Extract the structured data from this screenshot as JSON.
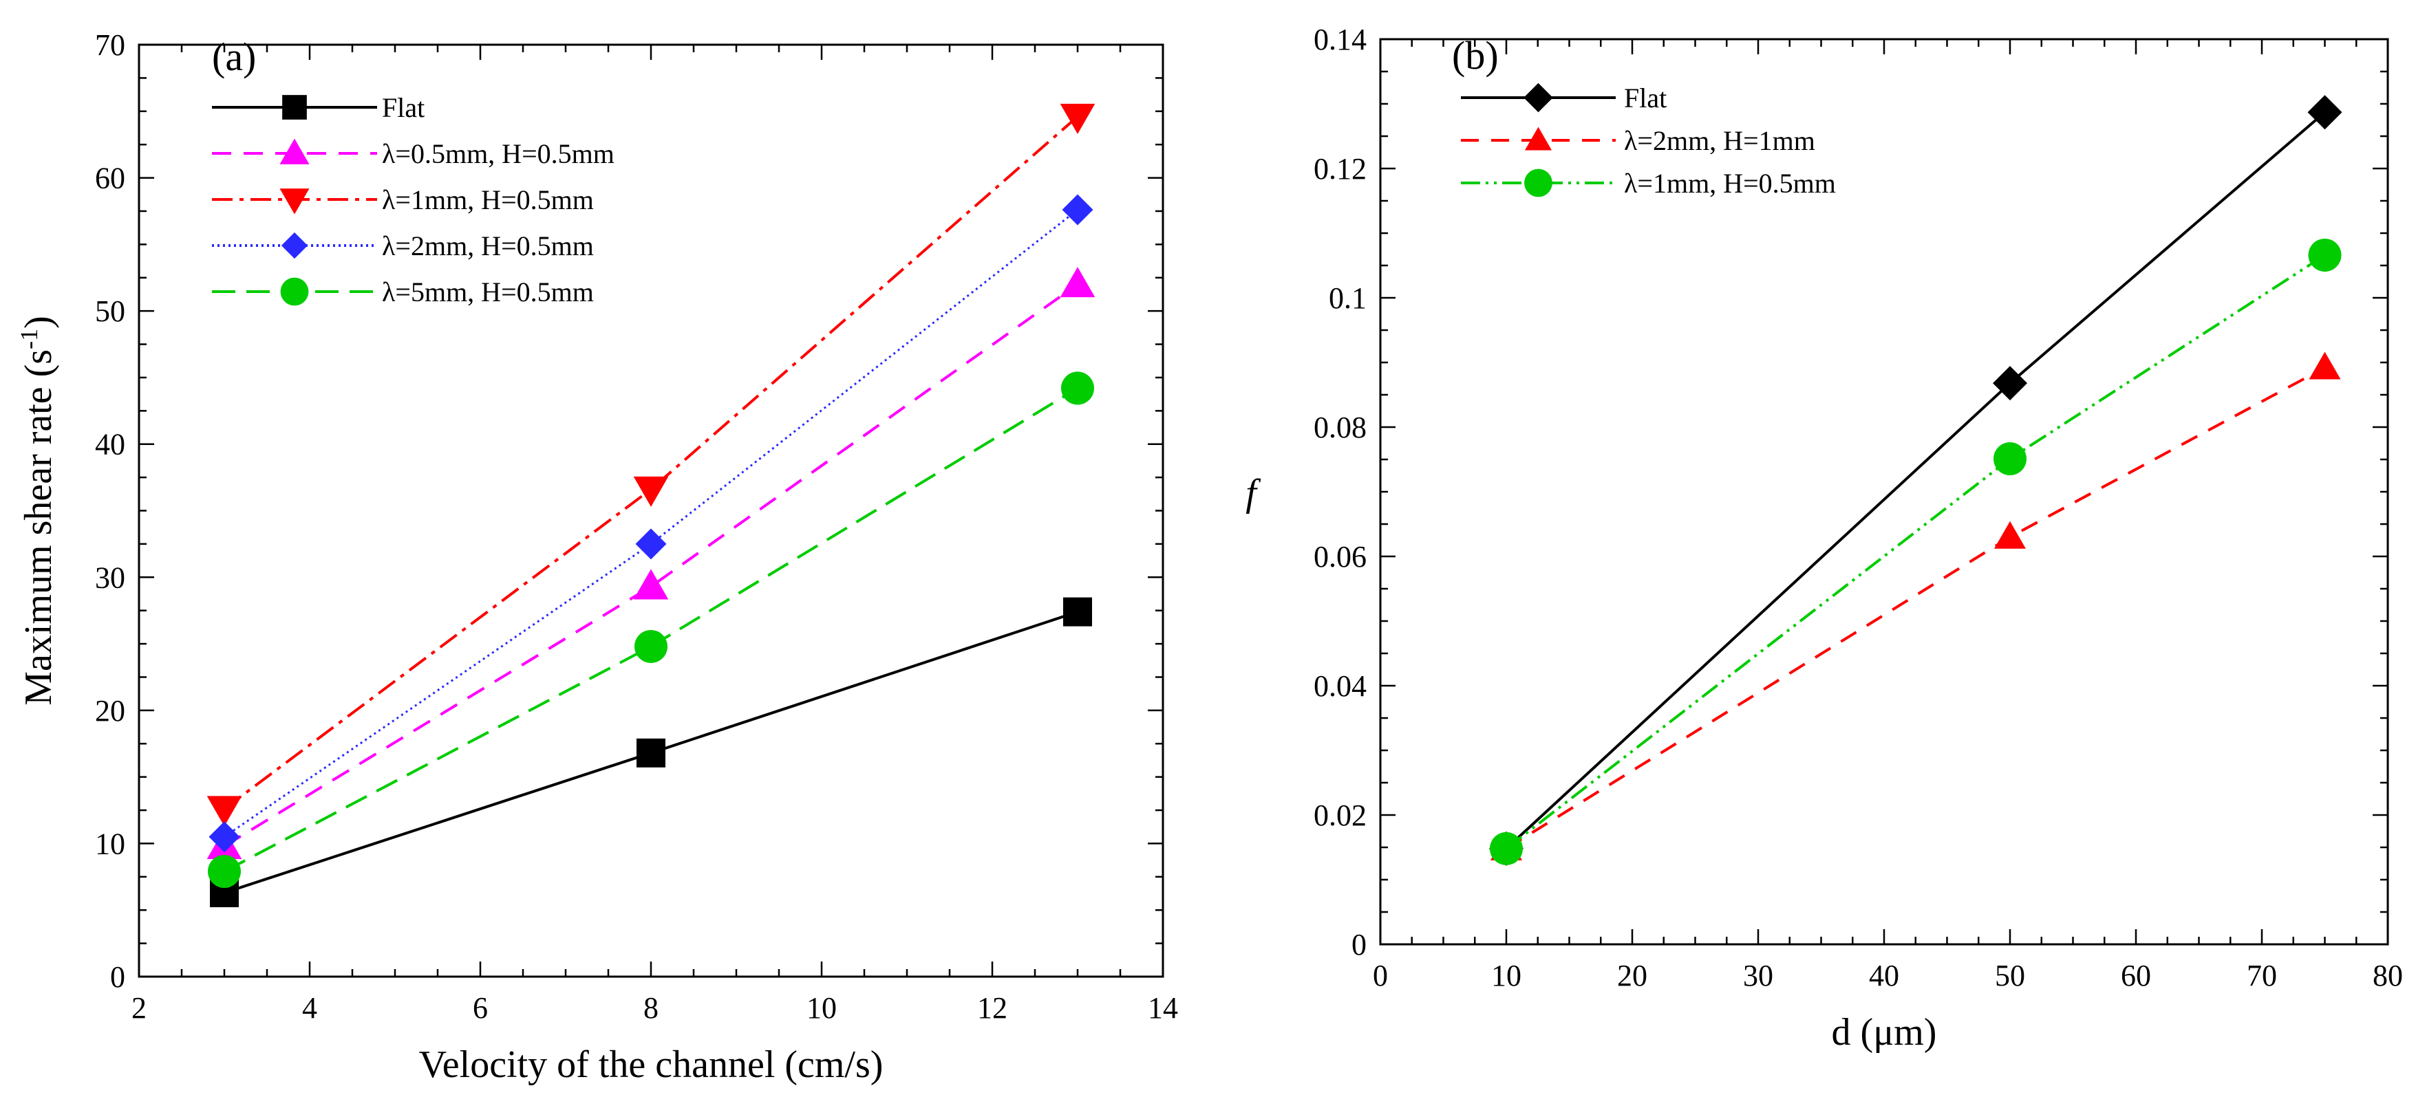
{
  "chart_data": [
    {
      "panel_label": "(a)",
      "type": "line",
      "xlabel": "Velocity of the channel (cm/s)",
      "ylabel_main": "Maximum shear rate (s",
      "ylabel_sup": "-1",
      "ylabel_close": ")",
      "xlim": [
        2,
        14
      ],
      "ylim": [
        0,
        70
      ],
      "xticks": [
        2,
        4,
        6,
        8,
        10,
        12,
        14
      ],
      "yticks": [
        0,
        10,
        20,
        30,
        40,
        50,
        60,
        70
      ],
      "grid": false,
      "legend_position": "top-left",
      "x": [
        3,
        8,
        13
      ],
      "series": [
        {
          "name": "Flat",
          "values": [
            6.3,
            16.8,
            27.4
          ],
          "color": "#000000",
          "dash": "",
          "marker": "square"
        },
        {
          "name": "λ=0.5mm, H=0.5mm",
          "values": [
            9.8,
            29.3,
            52.0
          ],
          "color": "#ff00ff",
          "dash": "28,18",
          "marker": "triangle-up"
        },
        {
          "name": "λ=1mm, H=0.5mm",
          "values": [
            12.6,
            36.6,
            64.6
          ],
          "color": "#ff0000",
          "dash": "30,10,6,10",
          "marker": "triangle-down"
        },
        {
          "name": "λ=2mm, H=0.5mm",
          "values": [
            10.5,
            32.5,
            57.6
          ],
          "color": "#2a2aff",
          "dash": "3,5",
          "marker": "diamond"
        },
        {
          "name": "λ=5mm, H=0.5mm",
          "values": [
            7.9,
            24.8,
            44.2
          ],
          "color": "#00cc00",
          "dash": "34,16",
          "marker": "circle"
        }
      ]
    },
    {
      "panel_label": "(b)",
      "type": "line",
      "xlabel": "d (μm)",
      "ylabel": "f",
      "xlim": [
        0,
        80
      ],
      "ylim": [
        0,
        0.14
      ],
      "xticks": [
        0,
        10,
        20,
        30,
        40,
        50,
        60,
        70,
        80
      ],
      "yticks": [
        0,
        0.02,
        0.04,
        0.06,
        0.08,
        0.1,
        0.12,
        0.14
      ],
      "grid": false,
      "legend_position": "top-left",
      "x": [
        10,
        50,
        75
      ],
      "series": [
        {
          "name": "Flat",
          "values": [
            0.0148,
            0.0868,
            0.1287
          ],
          "color": "#000000",
          "dash": "",
          "marker": "diamond"
        },
        {
          "name": "λ=2mm, H=1mm",
          "values": [
            0.0148,
            0.063,
            0.0892
          ],
          "color": "#ff0000",
          "dash": "26,18",
          "marker": "triangle-up"
        },
        {
          "name": "λ=1mm, H=0.5mm",
          "values": [
            0.0148,
            0.0751,
            0.1066
          ],
          "color": "#00cc00",
          "dash": "28,8,4,8,4,8",
          "marker": "circle"
        }
      ]
    }
  ]
}
